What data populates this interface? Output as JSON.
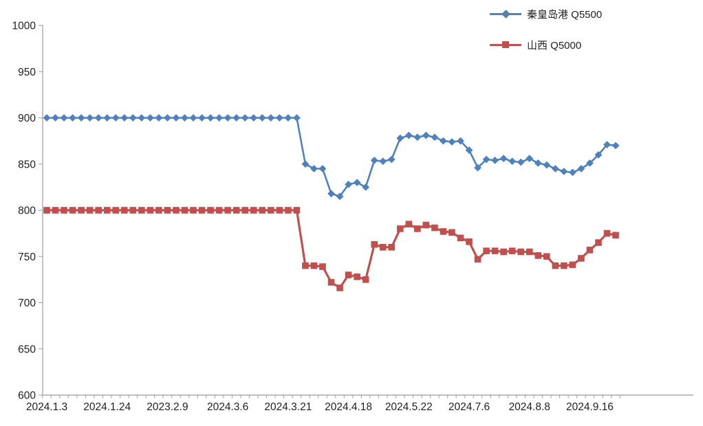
{
  "chart_data": {
    "type": "line",
    "title": "",
    "xlabel": "",
    "ylabel": "",
    "ylim": [
      600,
      1000
    ],
    "y_ticks": [
      1000,
      950,
      900,
      850,
      800,
      750,
      700,
      650,
      600
    ],
    "grid": false,
    "legend_position": "top-right",
    "n_points": 67,
    "x_tick_labels": [
      "2024.1.3",
      "2024.1.24",
      "2023.2.9",
      "2024.3.6",
      "2024.3.21",
      "2024.4.18",
      "2024.5.22",
      "2024.7.6",
      "2024.8.8",
      "2024.9.16"
    ],
    "x_label_indices": [
      0,
      7,
      14,
      21,
      28,
      35,
      42,
      49,
      56,
      63
    ],
    "series": [
      {
        "name": "秦皇岛港 Q5500",
        "color": "#4F81BD",
        "marker": "diamond",
        "values": [
          900,
          900,
          900,
          900,
          900,
          900,
          900,
          900,
          900,
          900,
          900,
          900,
          900,
          900,
          900,
          900,
          900,
          900,
          900,
          900,
          900,
          900,
          900,
          900,
          900,
          900,
          900,
          900,
          900,
          900,
          850,
          845,
          845,
          818,
          815,
          828,
          830,
          825,
          854,
          853,
          855,
          878,
          881,
          879,
          881,
          879,
          875,
          874,
          875,
          865,
          846,
          855,
          854,
          856,
          853,
          852,
          856,
          851,
          849,
          845,
          842,
          841,
          845,
          851,
          860,
          871,
          870
        ]
      },
      {
        "name": "山西 Q5000",
        "color": "#C0504D",
        "marker": "square",
        "values": [
          800,
          800,
          800,
          800,
          800,
          800,
          800,
          800,
          800,
          800,
          800,
          800,
          800,
          800,
          800,
          800,
          800,
          800,
          800,
          800,
          800,
          800,
          800,
          800,
          800,
          800,
          800,
          800,
          800,
          800,
          740,
          740,
          739,
          722,
          716,
          730,
          728,
          725,
          763,
          760,
          760,
          780,
          785,
          780,
          784,
          781,
          777,
          776,
          770,
          766,
          747,
          756,
          756,
          755,
          756,
          755,
          755,
          751,
          750,
          740,
          740,
          741,
          748,
          757,
          765,
          775,
          773
        ]
      }
    ]
  }
}
